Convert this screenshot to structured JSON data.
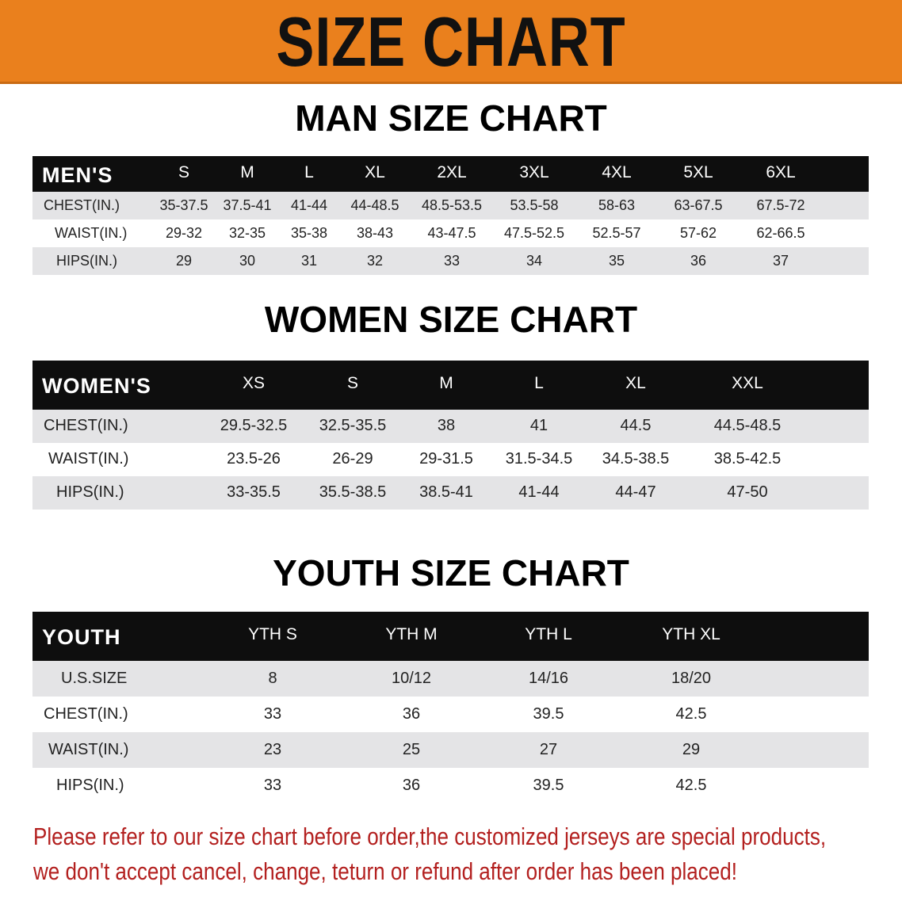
{
  "banner": {
    "title": "SIZE CHART",
    "color": "#ea801d"
  },
  "men": {
    "title": "MAN SIZE CHART",
    "header": [
      "MEN'S",
      "S",
      "M",
      "L",
      "XL",
      "2XL",
      "3XL",
      "4XL",
      "5XL",
      "6XL"
    ],
    "rows": [
      [
        "CHEST(IN.)",
        "35-37.5",
        "37.5-41",
        "41-44",
        "44-48.5",
        "48.5-53.5",
        "53.5-58",
        "58-63",
        "63-67.5",
        "67.5-72"
      ],
      [
        "WAIST(IN.)",
        "29-32",
        "32-35",
        "35-38",
        "38-43",
        "43-47.5",
        "47.5-52.5",
        "52.5-57",
        "57-62",
        "62-66.5"
      ],
      [
        "HIPS(IN.)",
        "29",
        "30",
        "31",
        "32",
        "33",
        "34",
        "35",
        "36",
        "37"
      ]
    ]
  },
  "women": {
    "title": "WOMEN SIZE CHART",
    "header": [
      "WOMEN'S",
      "XS",
      "S",
      "M",
      "L",
      "XL",
      "XXL"
    ],
    "rows": [
      [
        "CHEST(IN.)",
        "29.5-32.5",
        "32.5-35.5",
        "38",
        "41",
        "44.5",
        "44.5-48.5"
      ],
      [
        "WAIST(IN.)",
        "23.5-26",
        "26-29",
        "29-31.5",
        "31.5-34.5",
        "34.5-38.5",
        "38.5-42.5"
      ],
      [
        "HIPS(IN.)",
        "33-35.5",
        "35.5-38.5",
        "38.5-41",
        "41-44",
        "44-47",
        "47-50"
      ]
    ]
  },
  "youth": {
    "title": "YOUTH SIZE CHART",
    "header": [
      "YOUTH",
      "YTH S",
      "YTH M",
      "YTH L",
      "YTH XL"
    ],
    "rows": [
      [
        "U.S.SIZE",
        "8",
        "10/12",
        "14/16",
        "18/20"
      ],
      [
        "CHEST(IN.)",
        "33",
        "36",
        "39.5",
        "42.5"
      ],
      [
        "WAIST(IN.)",
        "23",
        "25",
        "27",
        "29"
      ],
      [
        "HIPS(IN.)",
        "33",
        "36",
        "39.5",
        "42.5"
      ]
    ]
  },
  "note": {
    "line1": "Please refer to our size chart before order,the customized jerseys are special products,",
    "line2": "we don't accept cancel, change, teturn or refund after order has been placed!",
    "color": "#b3201f"
  }
}
